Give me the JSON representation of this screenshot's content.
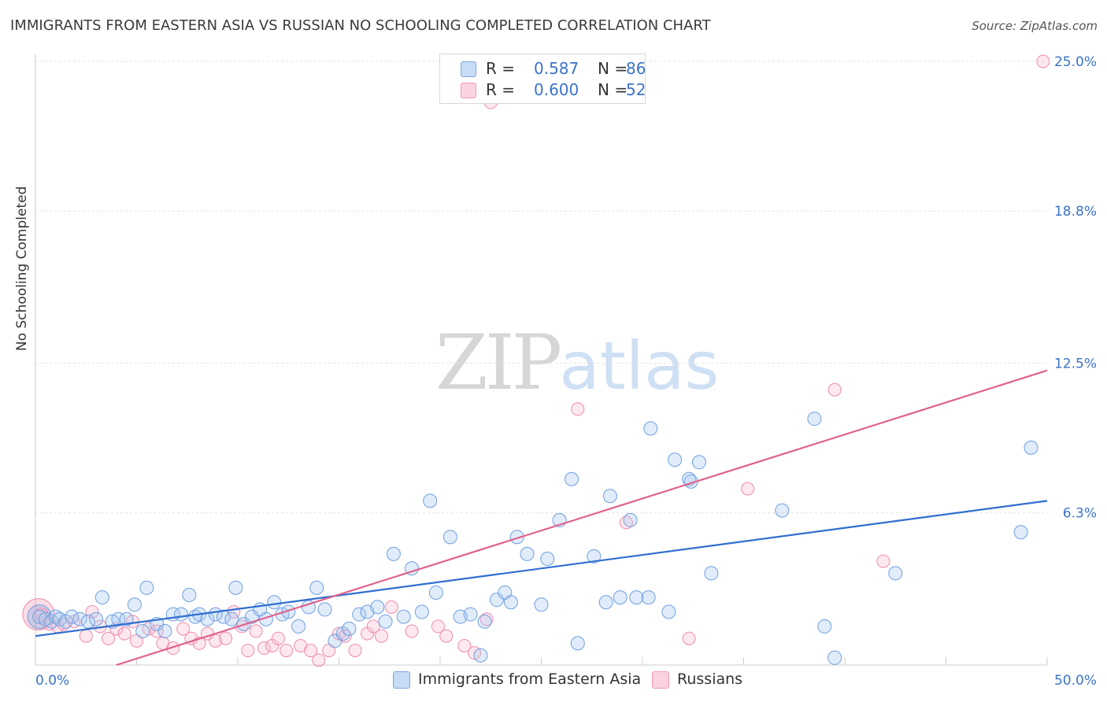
{
  "title": "IMMIGRANTS FROM EASTERN ASIA VS RUSSIAN NO SCHOOLING COMPLETED CORRELATION CHART",
  "source": "Source: ZipAtlas.com",
  "watermark": {
    "zip": "ZIP",
    "atlas": "atlas"
  },
  "legend": {
    "rows": [
      {
        "r_label": "R =",
        "r_value": "0.587",
        "n_label": "N =",
        "n_value": "86",
        "color": "#a9c8f0"
      },
      {
        "r_label": "R =",
        "r_value": "0.600",
        "n_label": "N =",
        "n_value": "52",
        "color": "#f7b9cd"
      }
    ]
  },
  "bottom_legend": {
    "series1": "Immigrants from Eastern Asia",
    "series2": "Russians"
  },
  "chart_data": {
    "type": "scatter",
    "title": "IMMIGRANTS FROM EASTERN ASIA VS RUSSIAN NO SCHOOLING COMPLETED CORRELATION CHART",
    "xlabel": "",
    "ylabel": "No Schooling Completed",
    "xlim": [
      0,
      50
    ],
    "ylim": [
      0,
      25.6
    ],
    "x_tick_labels": [
      "0.0%",
      "50.0%"
    ],
    "y_ticks": [
      6.3,
      12.5,
      18.8,
      25.0
    ],
    "y_tick_labels": [
      "6.3%",
      "12.5%",
      "18.8%",
      "25.0%"
    ],
    "grid": true,
    "colors": {
      "series1": "#6f9fe0",
      "series2": "#ef8aab",
      "line1": "#2f6fd0",
      "line2": "#e0628e",
      "tick_text": "#3b73c8"
    },
    "series": [
      {
        "name": "Immigrants from Eastern Asia",
        "trend": {
          "x": [
            0,
            50
          ],
          "y": [
            1.2,
            6.8
          ]
        },
        "points": [
          [
            0.2,
            2.0
          ],
          [
            0.5,
            1.9
          ],
          [
            0.8,
            1.8
          ],
          [
            1.0,
            2.0
          ],
          [
            1.2,
            1.9
          ],
          [
            1.5,
            1.8
          ],
          [
            1.8,
            2.0
          ],
          [
            2.2,
            1.9
          ],
          [
            2.6,
            1.8
          ],
          [
            3.0,
            1.9
          ],
          [
            3.3,
            2.8
          ],
          [
            3.8,
            1.8
          ],
          [
            4.1,
            1.9
          ],
          [
            4.5,
            1.9
          ],
          [
            4.9,
            2.5
          ],
          [
            5.3,
            1.4
          ],
          [
            5.5,
            3.2
          ],
          [
            6.0,
            1.7
          ],
          [
            6.4,
            1.4
          ],
          [
            6.8,
            2.1
          ],
          [
            7.2,
            2.1
          ],
          [
            7.6,
            2.9
          ],
          [
            7.9,
            2.0
          ],
          [
            8.1,
            2.1
          ],
          [
            8.5,
            1.9
          ],
          [
            8.9,
            2.1
          ],
          [
            9.3,
            2.0
          ],
          [
            9.7,
            1.9
          ],
          [
            9.9,
            3.2
          ],
          [
            10.3,
            1.7
          ],
          [
            10.7,
            2.0
          ],
          [
            11.1,
            2.3
          ],
          [
            11.4,
            1.9
          ],
          [
            11.8,
            2.6
          ],
          [
            12.2,
            2.1
          ],
          [
            12.5,
            2.2
          ],
          [
            13.0,
            1.6
          ],
          [
            13.5,
            2.4
          ],
          [
            13.9,
            3.2
          ],
          [
            14.3,
            2.3
          ],
          [
            14.8,
            1.0
          ],
          [
            15.2,
            1.3
          ],
          [
            15.5,
            1.5
          ],
          [
            16.0,
            2.1
          ],
          [
            16.4,
            2.2
          ],
          [
            16.9,
            2.4
          ],
          [
            17.3,
            1.8
          ],
          [
            17.7,
            4.6
          ],
          [
            18.2,
            2.0
          ],
          [
            18.6,
            4.0
          ],
          [
            19.1,
            2.2
          ],
          [
            19.5,
            6.8
          ],
          [
            19.8,
            3.0
          ],
          [
            20.5,
            5.3
          ],
          [
            21.0,
            2.0
          ],
          [
            21.5,
            2.1
          ],
          [
            22.0,
            0.4
          ],
          [
            22.2,
            1.8
          ],
          [
            22.8,
            2.7
          ],
          [
            23.2,
            3.0
          ],
          [
            23.5,
            2.6
          ],
          [
            23.8,
            5.3
          ],
          [
            24.3,
            4.6
          ],
          [
            25.0,
            2.5
          ],
          [
            25.3,
            4.4
          ],
          [
            25.9,
            6.0
          ],
          [
            26.5,
            7.7
          ],
          [
            26.8,
            0.9
          ],
          [
            27.6,
            4.5
          ],
          [
            28.2,
            2.6
          ],
          [
            28.4,
            7.0
          ],
          [
            28.9,
            2.8
          ],
          [
            29.4,
            6.0
          ],
          [
            29.7,
            2.8
          ],
          [
            30.3,
            2.8
          ],
          [
            30.4,
            9.8
          ],
          [
            31.3,
            2.2
          ],
          [
            31.6,
            8.5
          ],
          [
            32.3,
            7.7
          ],
          [
            32.4,
            7.6
          ],
          [
            32.8,
            8.4
          ],
          [
            33.4,
            3.8
          ],
          [
            36.9,
            6.4
          ],
          [
            38.5,
            10.2
          ],
          [
            39.0,
            1.6
          ],
          [
            39.5,
            0.3
          ],
          [
            42.5,
            3.8
          ],
          [
            48.7,
            5.5
          ],
          [
            49.2,
            9.0
          ]
        ]
      },
      {
        "name": "Russians",
        "trend": {
          "x": [
            4.0,
            50
          ],
          "y": [
            0,
            12.2
          ]
        },
        "points": [
          [
            0.3,
            2.1
          ],
          [
            0.7,
            1.7
          ],
          [
            1.1,
            1.6
          ],
          [
            1.4,
            1.7
          ],
          [
            1.9,
            1.8
          ],
          [
            2.5,
            1.2
          ],
          [
            2.8,
            2.2
          ],
          [
            3.2,
            1.6
          ],
          [
            3.6,
            1.1
          ],
          [
            4.0,
            1.5
          ],
          [
            4.4,
            1.3
          ],
          [
            4.8,
            1.8
          ],
          [
            5.0,
            1.0
          ],
          [
            5.6,
            1.5
          ],
          [
            6.0,
            1.4
          ],
          [
            6.3,
            0.9
          ],
          [
            6.8,
            0.7
          ],
          [
            7.3,
            1.5
          ],
          [
            7.7,
            1.1
          ],
          [
            8.1,
            0.9
          ],
          [
            8.5,
            1.3
          ],
          [
            8.9,
            1.0
          ],
          [
            9.4,
            1.1
          ],
          [
            9.8,
            2.2
          ],
          [
            10.2,
            1.6
          ],
          [
            10.5,
            0.6
          ],
          [
            10.9,
            1.4
          ],
          [
            11.3,
            0.7
          ],
          [
            11.7,
            0.8
          ],
          [
            12.0,
            1.1
          ],
          [
            12.4,
            0.6
          ],
          [
            13.1,
            0.8
          ],
          [
            13.6,
            0.6
          ],
          [
            14.0,
            0.2
          ],
          [
            14.5,
            0.6
          ],
          [
            15.0,
            1.3
          ],
          [
            15.3,
            1.2
          ],
          [
            15.8,
            0.6
          ],
          [
            16.4,
            1.3
          ],
          [
            16.7,
            1.6
          ],
          [
            17.1,
            1.2
          ],
          [
            17.6,
            2.4
          ],
          [
            18.6,
            1.4
          ],
          [
            19.9,
            1.6
          ],
          [
            20.3,
            1.2
          ],
          [
            21.2,
            0.8
          ],
          [
            21.7,
            0.5
          ],
          [
            22.3,
            1.9
          ],
          [
            22.5,
            23.3
          ],
          [
            26.8,
            10.6
          ],
          [
            29.2,
            5.9
          ],
          [
            32.3,
            1.1
          ],
          [
            35.2,
            7.3
          ],
          [
            39.5,
            11.4
          ],
          [
            41.9,
            4.3
          ],
          [
            49.8,
            25.0
          ]
        ]
      }
    ]
  }
}
